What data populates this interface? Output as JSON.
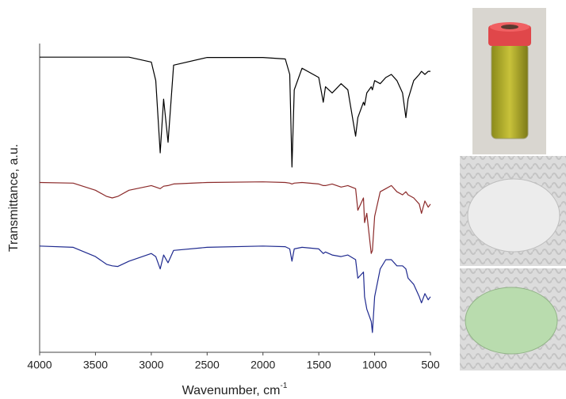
{
  "chart_data": {
    "type": "line",
    "xlabel": "Wavenumber, cm",
    "xlabel_superscript": "-1",
    "ylabel": "Transmittance, a.u.",
    "x": [
      4000,
      3700,
      3500,
      3400,
      3350,
      3300,
      3200,
      3000,
      2960,
      2920,
      2890,
      2850,
      2800,
      2500,
      2000,
      1800,
      1760,
      1740,
      1720,
      1650,
      1500,
      1460,
      1440,
      1380,
      1300,
      1240,
      1170,
      1150,
      1100,
      1090,
      1070,
      1030,
      1020,
      1000,
      950,
      900,
      850,
      800,
      750,
      720,
      700,
      650,
      600,
      580,
      550,
      520,
      500
    ],
    "series": [
      {
        "color": "#000000",
        "values": [
          95.6,
          95.6,
          95.6,
          95.6,
          95.6,
          95.6,
          95.6,
          94,
          88,
          64.6,
          82,
          68,
          93,
          95.5,
          95.5,
          95,
          90,
          60,
          85,
          92,
          89,
          81,
          86,
          84,
          87,
          85,
          70,
          76,
          81,
          80,
          84,
          86,
          85,
          88,
          87,
          89,
          90,
          88,
          84,
          76,
          82,
          88,
          90,
          91,
          90,
          91,
          91
        ]
      },
      {
        "color": "#8b2a2a",
        "values": [
          55,
          54.8,
          52.5,
          50.5,
          50,
          50.5,
          52.5,
          54,
          53.5,
          53,
          53.8,
          54,
          54.5,
          55,
          55.2,
          55,
          54.8,
          54.5,
          54.8,
          55,
          54.5,
          54,
          54,
          54.5,
          53.5,
          54,
          53,
          46,
          50,
          42,
          45,
          32,
          33,
          44,
          52,
          53,
          54,
          52,
          51,
          52,
          51,
          50,
          48,
          45,
          49,
          47,
          48
        ]
      },
      {
        "color": "#1f2a8f",
        "values": [
          34.4,
          34,
          31,
          28.5,
          28,
          27.8,
          29.5,
          32,
          31,
          27,
          31.5,
          29,
          33,
          34,
          34.4,
          34.2,
          33.5,
          29.5,
          33.5,
          34,
          33.5,
          32,
          32.5,
          31.5,
          31,
          31.5,
          30,
          24,
          26,
          18,
          14,
          10,
          6.4,
          18,
          27,
          30,
          30,
          28,
          28,
          27,
          24,
          22,
          18,
          16,
          19,
          17,
          18
        ]
      }
    ],
    "xlim": [
      4000,
      500
    ],
    "xticks": [
      4000,
      3500,
      3000,
      2500,
      2000,
      1500,
      1000,
      500
    ],
    "ylim": [
      0,
      100
    ]
  }
}
